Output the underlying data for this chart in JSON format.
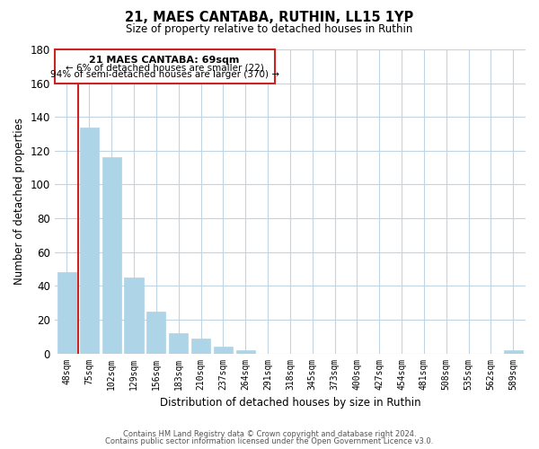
{
  "title": "21, MAES CANTABA, RUTHIN, LL15 1YP",
  "subtitle": "Size of property relative to detached houses in Ruthin",
  "xlabel": "Distribution of detached houses by size in Ruthin",
  "ylabel": "Number of detached properties",
  "bar_labels": [
    "48sqm",
    "75sqm",
    "102sqm",
    "129sqm",
    "156sqm",
    "183sqm",
    "210sqm",
    "237sqm",
    "264sqm",
    "291sqm",
    "318sqm",
    "345sqm",
    "373sqm",
    "400sqm",
    "427sqm",
    "454sqm",
    "481sqm",
    "508sqm",
    "535sqm",
    "562sqm",
    "589sqm"
  ],
  "bar_values": [
    48,
    134,
    116,
    45,
    25,
    12,
    9,
    4,
    2,
    0,
    0,
    0,
    0,
    0,
    0,
    0,
    0,
    0,
    0,
    0,
    2
  ],
  "bar_color": "#aed4e8",
  "highlight_color": "#cc2222",
  "ylim": [
    0,
    180
  ],
  "yticks": [
    0,
    20,
    40,
    60,
    80,
    100,
    120,
    140,
    160,
    180
  ],
  "annotation_title": "21 MAES CANTABA: 69sqm",
  "annotation_line1": "← 6% of detached houses are smaller (22)",
  "annotation_line2": "94% of semi-detached houses are larger (370) →",
  "footer1": "Contains HM Land Registry data © Crown copyright and database right 2024.",
  "footer2": "Contains public sector information licensed under the Open Government Licence v3.0.",
  "bg_color": "#ffffff",
  "grid_color": "#c0d4e4"
}
